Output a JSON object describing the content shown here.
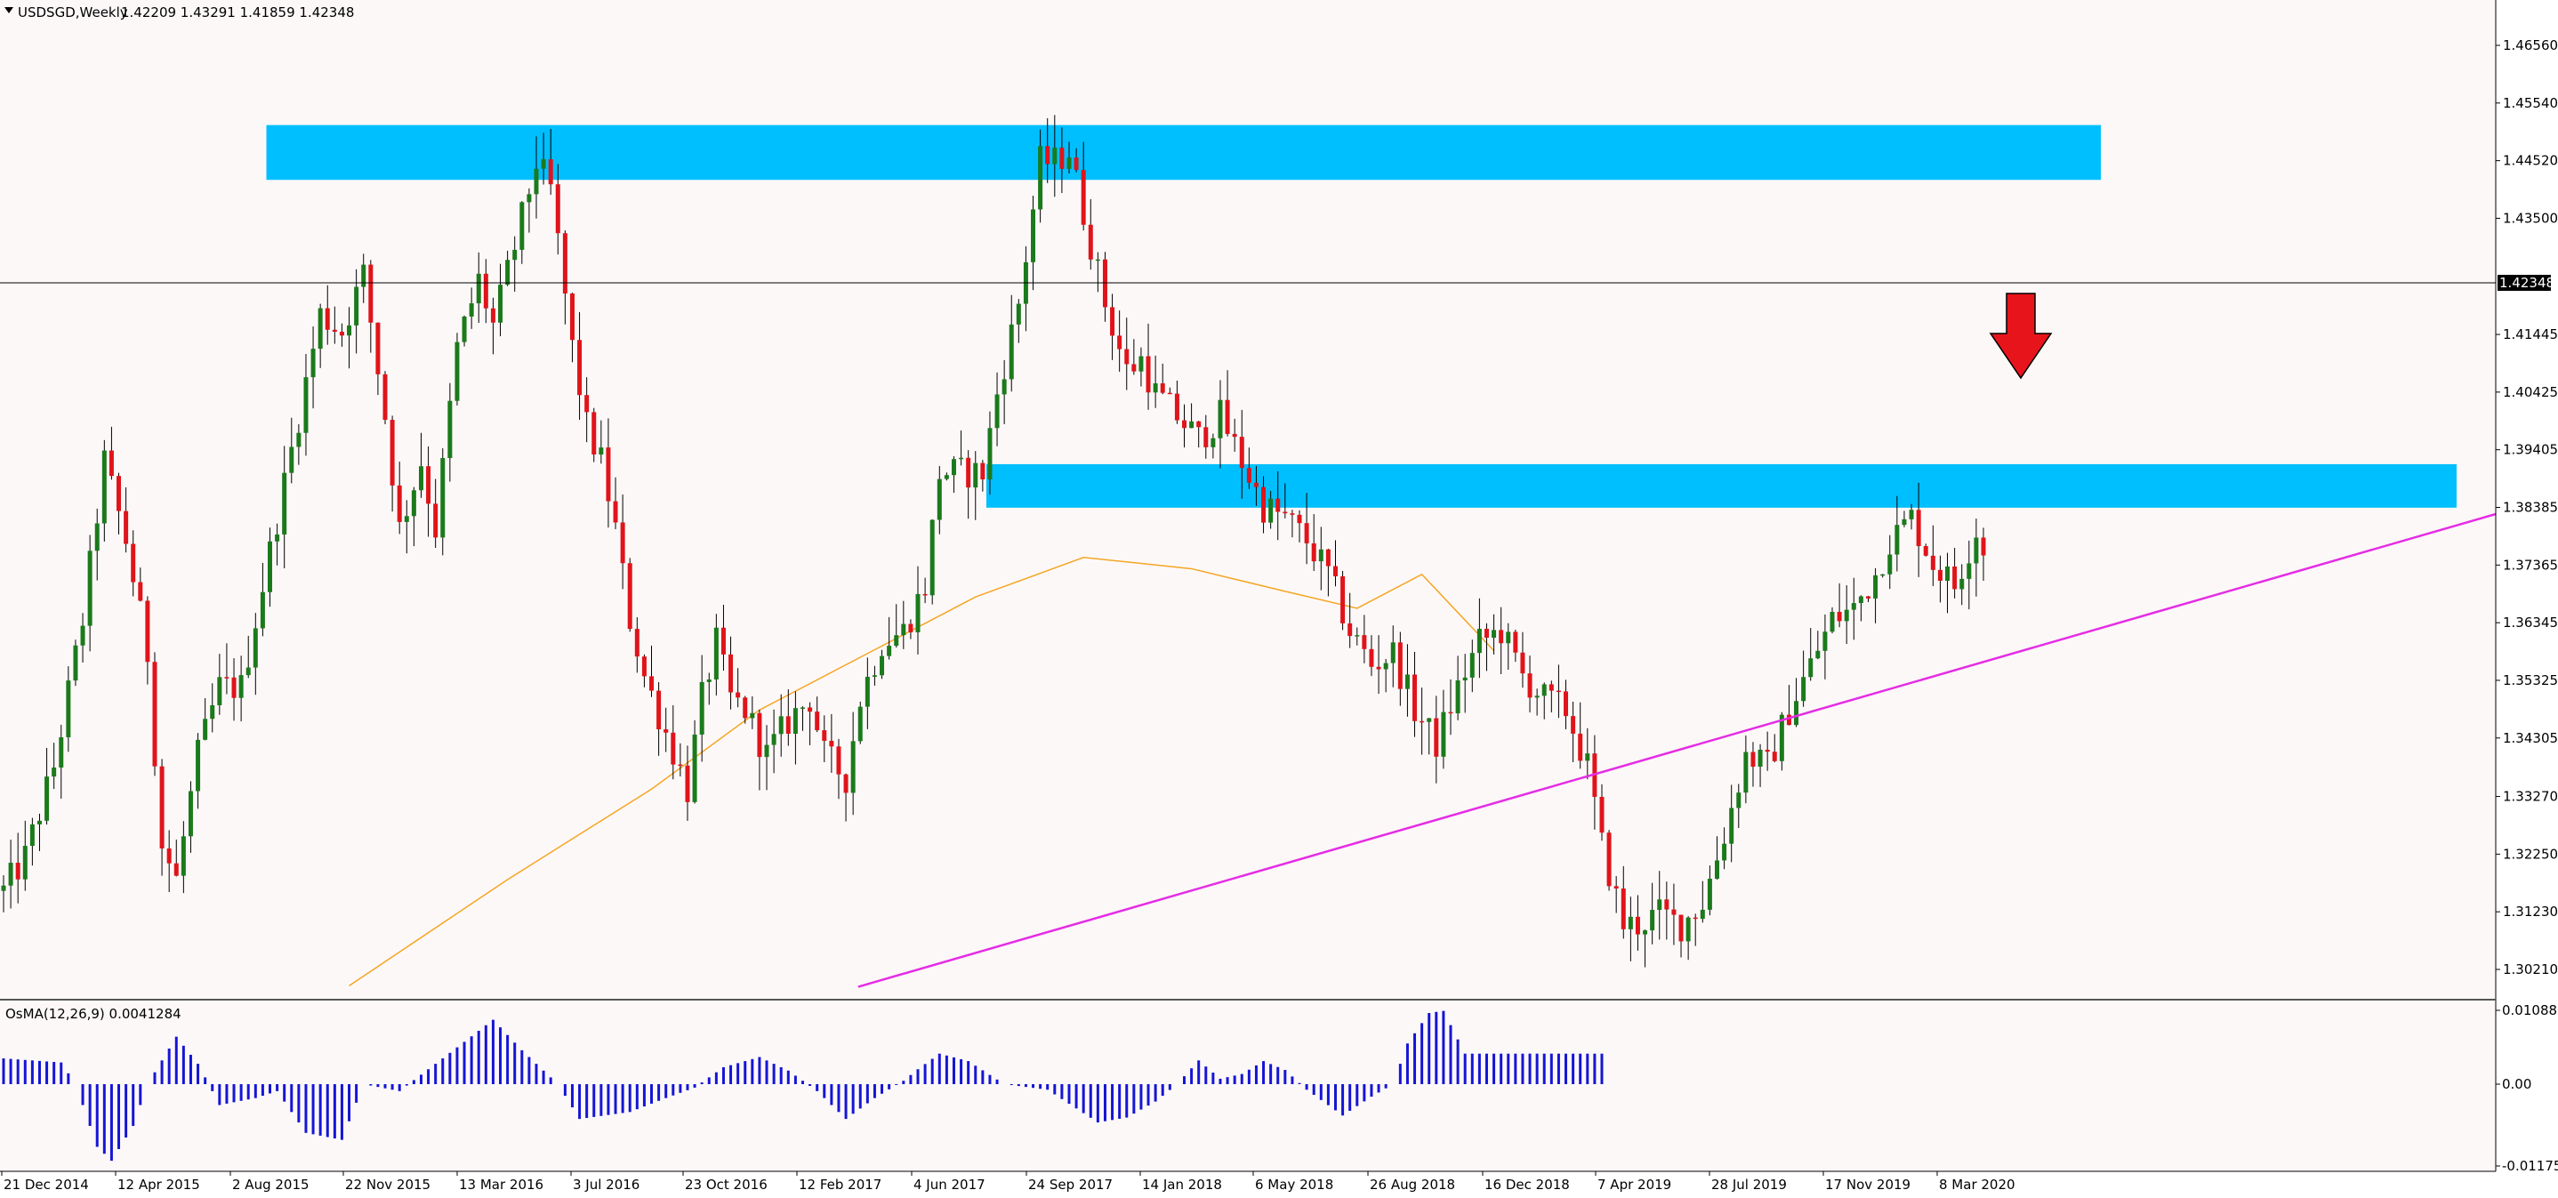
{
  "header": {
    "symbol": "USDSGD,Weekly",
    "ohlc": "1.42209 1.43291 1.41859 1.42348"
  },
  "osma_header": "OsMA(12,26,9) 0.0041284",
  "current_price_label": "1.42348",
  "colors": {
    "background": "#fdf8f8",
    "bull_candle": "#1b7a1b",
    "bear_candle": "#e0141a",
    "wick": "#000000",
    "zone": "#00bfff",
    "trendline": "#e52ce5",
    "moving_average": "#f5a623",
    "osma": "#1515d6",
    "arrow": "#e8141c",
    "price_line": "#000000"
  },
  "icons": {
    "arrow": "down-arrow-icon",
    "menu": "triangle-down-icon"
  },
  "chart_data": {
    "type": "candlestick",
    "title": "USDSGD,Weekly",
    "price_axis": {
      "ticks": [
        "1.46560",
        "1.45540",
        "1.44520",
        "1.43500",
        "1.42348",
        "1.41445",
        "1.40425",
        "1.39405",
        "1.38385",
        "1.37365",
        "1.36345",
        "1.35325",
        "1.34305",
        "1.33270",
        "1.32250",
        "1.31230",
        "1.30210"
      ],
      "range": [
        1.2992,
        1.471
      ]
    },
    "time_axis": {
      "ticks": [
        "21 Dec 2014",
        "12 Apr 2015",
        "2 Aug 2015",
        "22 Nov 2015",
        "13 Mar 2016",
        "3 Jul 2016",
        "23 Oct 2016",
        "12 Feb 2017",
        "4 Jun 2017",
        "24 Sep 2017",
        "14 Jan 2018",
        "6 May 2018",
        "26 Aug 2018",
        "16 Dec 2018",
        "7 Apr 2019",
        "28 Jul 2019",
        "17 Nov 2019",
        "8 Mar 2020"
      ],
      "bars": 276
    },
    "close_path": [
      [
        0,
        1.316
      ],
      [
        3,
        1.322
      ],
      [
        7,
        1.338
      ],
      [
        11,
        1.364
      ],
      [
        14,
        1.392
      ],
      [
        17,
        1.378
      ],
      [
        20,
        1.358
      ],
      [
        22,
        1.324
      ],
      [
        24,
        1.318
      ],
      [
        27,
        1.34
      ],
      [
        30,
        1.352
      ],
      [
        33,
        1.352
      ],
      [
        36,
        1.37
      ],
      [
        40,
        1.394
      ],
      [
        44,
        1.418
      ],
      [
        47,
        1.415
      ],
      [
        50,
        1.425
      ],
      [
        53,
        1.4
      ],
      [
        55,
        1.38
      ],
      [
        58,
        1.392
      ],
      [
        60,
        1.38
      ],
      [
        63,
        1.412
      ],
      [
        66,
        1.424
      ],
      [
        68,
        1.416
      ],
      [
        71,
        1.43
      ],
      [
        74,
        1.445
      ],
      [
        76,
        1.44
      ],
      [
        79,
        1.412
      ],
      [
        81,
        1.398
      ],
      [
        83,
        1.392
      ],
      [
        85,
        1.38
      ],
      [
        87,
        1.364
      ],
      [
        89,
        1.354
      ],
      [
        92,
        1.344
      ],
      [
        95,
        1.334
      ],
      [
        97,
        1.35
      ],
      [
        99,
        1.36
      ],
      [
        101,
        1.35
      ],
      [
        103,
        1.348
      ],
      [
        106,
        1.34
      ],
      [
        109,
        1.346
      ],
      [
        112,
        1.35
      ],
      [
        114,
        1.34
      ],
      [
        117,
        1.336
      ],
      [
        119,
        1.35
      ],
      [
        122,
        1.36
      ],
      [
        125,
        1.362
      ],
      [
        128,
        1.37
      ],
      [
        130,
        1.39
      ],
      [
        133,
        1.39
      ],
      [
        136,
        1.39
      ],
      [
        138,
        1.404
      ],
      [
        141,
        1.42
      ],
      [
        144,
        1.445
      ],
      [
        146,
        1.445
      ],
      [
        148,
        1.447
      ],
      [
        150,
        1.436
      ],
      [
        153,
        1.42
      ],
      [
        156,
        1.408
      ],
      [
        158,
        1.41
      ],
      [
        160,
        1.404
      ],
      [
        163,
        1.4
      ],
      [
        166,
        1.396
      ],
      [
        169,
        1.4
      ],
      [
        172,
        1.392
      ],
      [
        175,
        1.384
      ],
      [
        178,
        1.382
      ],
      [
        181,
        1.378
      ],
      [
        184,
        1.372
      ],
      [
        187,
        1.362
      ],
      [
        190,
        1.356
      ],
      [
        193,
        1.358
      ],
      [
        196,
        1.348
      ],
      [
        199,
        1.342
      ],
      [
        202,
        1.352
      ],
      [
        205,
        1.36
      ],
      [
        208,
        1.362
      ],
      [
        211,
        1.354
      ],
      [
        214,
        1.35
      ],
      [
        217,
        1.348
      ],
      [
        220,
        1.338
      ],
      [
        222,
        1.324
      ],
      [
        225,
        1.31
      ],
      [
        227,
        1.31
      ],
      [
        230,
        1.312
      ],
      [
        233,
        1.31
      ],
      [
        236,
        1.314
      ],
      [
        239,
        1.326
      ],
      [
        242,
        1.34
      ],
      [
        245,
        1.338
      ],
      [
        248,
        1.348
      ],
      [
        251,
        1.356
      ],
      [
        254,
        1.364
      ],
      [
        257,
        1.366
      ],
      [
        260,
        1.372
      ],
      [
        262,
        1.378
      ],
      [
        265,
        1.382
      ],
      [
        268,
        1.374
      ],
      [
        271,
        1.37
      ],
      [
        274,
        1.38
      ],
      [
        277,
        1.368
      ]
    ],
    "zones": [
      {
        "name": "upper resistance zone",
        "from_bar": 37,
        "to_bar": 210,
        "top": 1.4515,
        "bottom": 1.4418
      },
      {
        "name": "middle resistance zone",
        "from_bar": 137,
        "to_bar": 247,
        "top": 1.3915,
        "bottom": 1.3838
      }
    ],
    "trendline": {
      "bar_from": 115,
      "price_from": 1.3006,
      "bar_to": 276,
      "price_to": 1.3842
    },
    "moving_average_path": [
      [
        48,
        1.2992
      ],
      [
        70,
        1.318
      ],
      [
        90,
        1.334
      ],
      [
        105,
        1.348
      ],
      [
        120,
        1.358
      ],
      [
        135,
        1.368
      ],
      [
        150,
        1.375
      ],
      [
        165,
        1.373
      ],
      [
        178,
        1.369
      ],
      [
        188,
        1.366
      ],
      [
        197,
        1.372
      ],
      [
        207,
        1.3585
      ]
    ],
    "osma": {
      "ticks": [
        "0.0108865",
        "0.00",
        "-0.0117566"
      ],
      "range": [
        -0.0117566,
        0.0108865
      ],
      "values_path": [
        [
          0,
          0.0038
        ],
        [
          8,
          0.0032
        ],
        [
          10,
          0.0
        ],
        [
          13,
          -0.009
        ],
        [
          15,
          -0.011
        ],
        [
          18,
          -0.006
        ],
        [
          20,
          0.0
        ],
        [
          24,
          0.007
        ],
        [
          27,
          0.003
        ],
        [
          30,
          -0.003
        ],
        [
          35,
          -0.002
        ],
        [
          38,
          -0.001
        ],
        [
          42,
          -0.007
        ],
        [
          47,
          -0.008
        ],
        [
          50,
          0.0
        ],
        [
          55,
          -0.001
        ],
        [
          61,
          0.0038
        ],
        [
          68,
          0.0095
        ],
        [
          72,
          0.005
        ],
        [
          77,
          0.0
        ],
        [
          80,
          -0.005
        ],
        [
          87,
          -0.004
        ],
        [
          92,
          -0.002
        ],
        [
          96,
          -0.0005
        ],
        [
          100,
          0.0025
        ],
        [
          105,
          0.004
        ],
        [
          109,
          0.002
        ],
        [
          113,
          -0.001
        ],
        [
          117,
          -0.005
        ],
        [
          121,
          -0.002
        ],
        [
          125,
          0.0005
        ],
        [
          127,
          0.0022
        ],
        [
          130,
          0.0045
        ],
        [
          134,
          0.0034
        ],
        [
          139,
          0.0
        ],
        [
          145,
          -0.0008
        ],
        [
          152,
          -0.0055
        ],
        [
          156,
          -0.0048
        ],
        [
          160,
          -0.0025
        ],
        [
          163,
          0.0
        ],
        [
          166,
          0.0035
        ],
        [
          169,
          0.0008
        ],
        [
          172,
          0.0015
        ],
        [
          175,
          0.0034
        ],
        [
          178,
          0.0021
        ],
        [
          181,
          -0.0008
        ],
        [
          186,
          -0.0045
        ],
        [
          190,
          -0.0018
        ],
        [
          193,
          0.0
        ],
        [
          195,
          0.006
        ],
        [
          198,
          0.0105
        ],
        [
          200,
          0.0108
        ],
        [
          203,
          0.0045
        ]
      ]
    },
    "annotation": {
      "type": "down-arrow",
      "bar": 207,
      "price": 1.4145
    }
  }
}
